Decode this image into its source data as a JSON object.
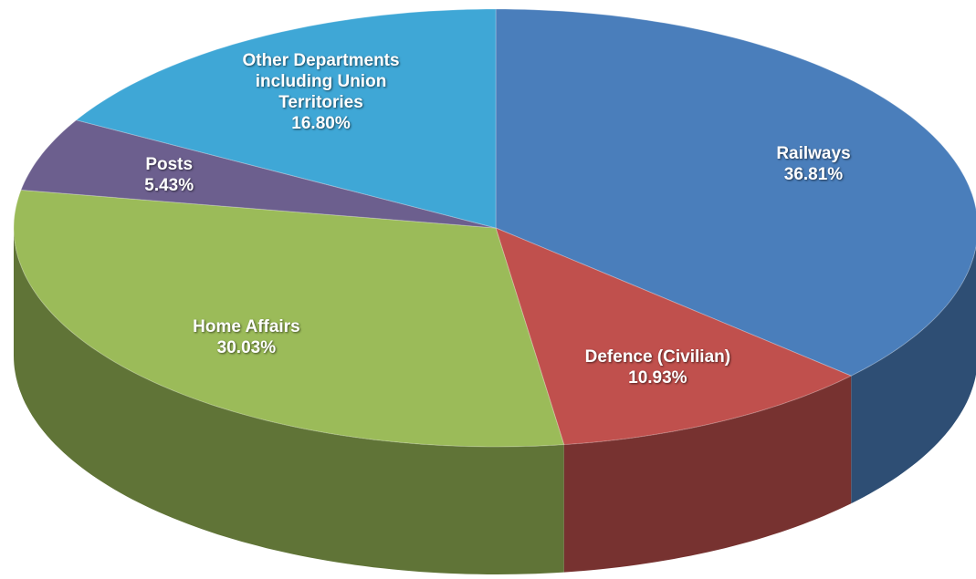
{
  "chart_data": {
    "type": "pie3d",
    "categories": [
      "Railways",
      "Defence (Civilian)",
      "Home Affairs",
      "Posts",
      "Other Departments including Union Territories"
    ],
    "values": [
      36.81,
      10.93,
      30.03,
      5.43,
      16.8
    ],
    "value_labels": [
      "36.81%",
      "10.93%",
      "30.03%",
      "5.43%",
      "16.80%"
    ],
    "colors": [
      "#4a7ebb",
      "#c0504d",
      "#9bbb59",
      "#6c5f8e",
      "#3fa7d6"
    ]
  }
}
